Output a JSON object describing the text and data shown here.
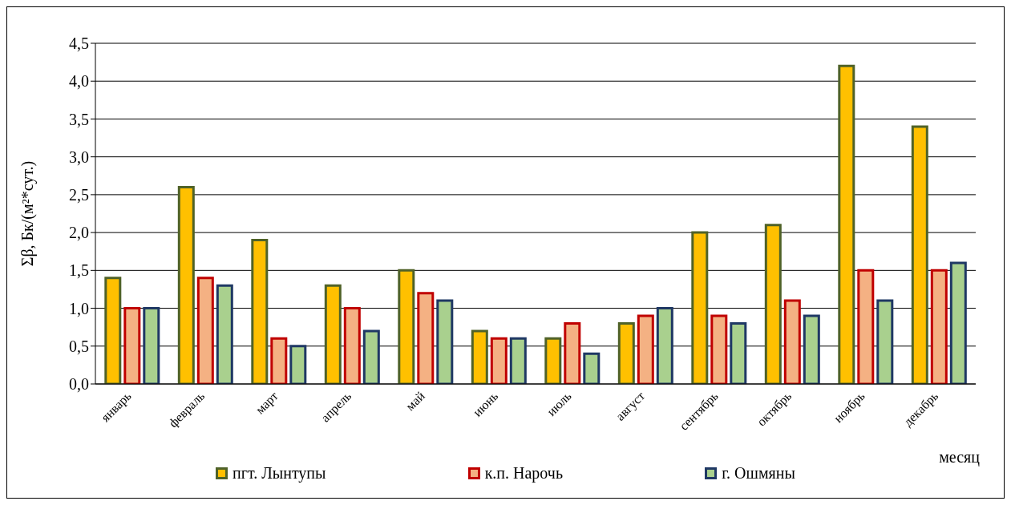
{
  "chart_data": {
    "type": "bar",
    "xlabel": "месяц",
    "ylabel": "Σβ, Бк/(м²*сут.)",
    "categories": [
      "январь",
      "февраль",
      "март",
      "апрель",
      "май",
      "июнь",
      "июль",
      "август",
      "сентябрь",
      "октябрь",
      "ноябрь",
      "декабрь"
    ],
    "series": [
      {
        "name": "пгт. Лынтупы",
        "color": "#ffc000",
        "values": [
          1.4,
          2.6,
          1.9,
          1.3,
          1.5,
          0.7,
          0.6,
          0.8,
          2.0,
          2.1,
          4.2,
          3.4
        ]
      },
      {
        "name": "к.п. Нарочь",
        "color": "#f4b183",
        "values": [
          1.0,
          1.4,
          0.6,
          1.0,
          1.2,
          0.6,
          0.8,
          0.9,
          0.9,
          1.1,
          1.5,
          1.5
        ]
      },
      {
        "name": "г. Ошмяны",
        "color": "#a9d08e",
        "values": [
          1.0,
          1.3,
          0.5,
          0.7,
          1.1,
          0.6,
          0.4,
          1.0,
          0.8,
          0.9,
          1.1,
          1.6
        ]
      }
    ],
    "ylim": [
      0,
      4.5
    ],
    "yticks": [
      {
        "value": 0,
        "label": "0,0"
      },
      {
        "value": 0.5,
        "label": "0,5"
      },
      {
        "value": 1,
        "label": "1,0"
      },
      {
        "value": 1.5,
        "label": "1,5"
      },
      {
        "value": 2,
        "label": "2,0"
      },
      {
        "value": 2.5,
        "label": "2,5"
      },
      {
        "value": 3,
        "label": "3,0"
      },
      {
        "value": 3.5,
        "label": "3,5"
      },
      {
        "value": 4,
        "label": "4,0"
      },
      {
        "value": 4.5,
        "label": "4,5"
      }
    ],
    "grid": "y",
    "legend": "bottom"
  }
}
